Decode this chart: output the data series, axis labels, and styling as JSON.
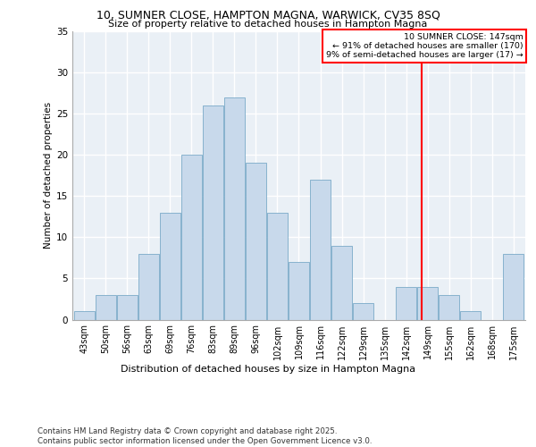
{
  "title_line1": "10, SUMNER CLOSE, HAMPTON MAGNA, WARWICK, CV35 8SQ",
  "title_line2": "Size of property relative to detached houses in Hampton Magna",
  "xlabel": "Distribution of detached houses by size in Hampton Magna",
  "ylabel": "Number of detached properties",
  "categories": [
    "43sqm",
    "50sqm",
    "56sqm",
    "63sqm",
    "69sqm",
    "76sqm",
    "83sqm",
    "89sqm",
    "96sqm",
    "102sqm",
    "109sqm",
    "116sqm",
    "122sqm",
    "129sqm",
    "135sqm",
    "142sqm",
    "149sqm",
    "155sqm",
    "162sqm",
    "168sqm",
    "175sqm"
  ],
  "values": [
    1,
    3,
    3,
    8,
    13,
    20,
    26,
    27,
    19,
    13,
    7,
    17,
    9,
    2,
    0,
    4,
    4,
    3,
    1,
    0,
    8
  ],
  "bar_color": "#c8d9eb",
  "bar_edge_color": "#7aaac8",
  "vline_color": "red",
  "annotation_text": "10 SUMNER CLOSE: 147sqm\n← 91% of detached houses are smaller (170)\n9% of semi-detached houses are larger (17) →",
  "ylim": [
    0,
    35
  ],
  "yticks": [
    0,
    5,
    10,
    15,
    20,
    25,
    30,
    35
  ],
  "background_color": "#eaf0f6",
  "grid_color": "white",
  "footer_line1": "Contains HM Land Registry data © Crown copyright and database right 2025.",
  "footer_line2": "Contains public sector information licensed under the Open Government Licence v3.0."
}
